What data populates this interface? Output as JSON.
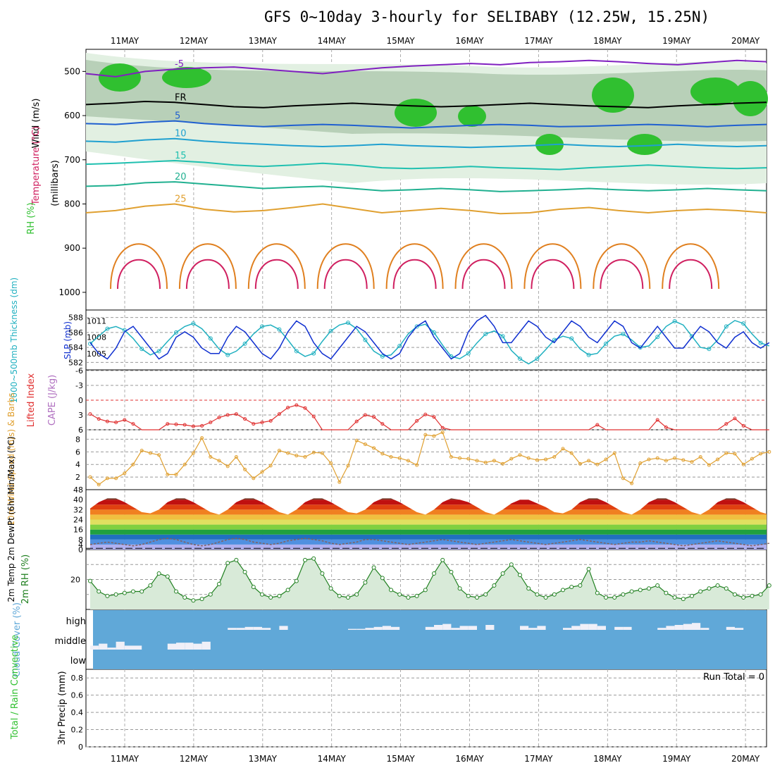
{
  "title": "GFS 0~10day 3-hourly for SELIBABY (12.25W, 15.25N)",
  "dates": [
    "11MAY",
    "12MAY",
    "13MAY",
    "14MAY",
    "15MAY",
    "16MAY",
    "17MAY",
    "18MAY",
    "19MAY",
    "20MAY"
  ],
  "colors": {
    "grid": "#999999",
    "temp_warm": "#d02060",
    "temp_mid": "#e08020",
    "temp_cool": "#20a0c0",
    "cold": "#8020c0",
    "freeze": "#000000",
    "rh_green": "#30c030",
    "slp": "#1030d0",
    "thickness": "#20b0c0",
    "lifted": "#e03030",
    "wind10": "#e0a030",
    "cloud": "#60a8d8",
    "rh2m": "#208020"
  },
  "chart_data": [
    {
      "type": "heatmap",
      "panel": "upper-air",
      "ylabels": {
        "wind": "Wind (m/s)",
        "temperature": "Temperature (°C)",
        "rh": "RH (%)",
        "units": "(millibars)"
      },
      "yticks": [
        500,
        600,
        700,
        800,
        900,
        1000
      ],
      "ylim": [
        450,
        1040
      ],
      "isotherms": [
        {
          "label": "-5",
          "p": [
            505,
            512,
            500,
            495,
            492,
            490,
            495,
            500,
            505,
            498,
            492,
            488,
            485,
            482,
            485,
            480,
            478,
            475,
            478,
            482,
            485,
            480,
            475,
            478
          ]
        },
        {
          "label": "FR",
          "p": [
            575,
            572,
            568,
            570,
            575,
            580,
            582,
            578,
            575,
            572,
            575,
            578,
            580,
            578,
            575,
            572,
            575,
            578,
            580,
            582,
            578,
            575,
            572,
            570
          ]
        },
        {
          "label": "5",
          "p": [
            618,
            620,
            615,
            612,
            618,
            622,
            625,
            622,
            620,
            622,
            625,
            628,
            625,
            622,
            620,
            622,
            625,
            624,
            622,
            620,
            622,
            625,
            622,
            620
          ]
        },
        {
          "label": "10",
          "p": [
            658,
            660,
            655,
            652,
            658,
            662,
            665,
            668,
            670,
            668,
            665,
            668,
            670,
            672,
            670,
            668,
            665,
            668,
            670,
            668,
            665,
            668,
            670,
            668
          ]
        },
        {
          "label": "15",
          "p": [
            710,
            708,
            705,
            702,
            706,
            712,
            715,
            712,
            708,
            712,
            718,
            720,
            718,
            715,
            718,
            720,
            722,
            718,
            715,
            712,
            715,
            718,
            720,
            718
          ]
        },
        {
          "label": "20",
          "p": [
            760,
            758,
            752,
            750,
            755,
            760,
            765,
            762,
            760,
            765,
            770,
            768,
            765,
            768,
            772,
            770,
            768,
            765,
            768,
            770,
            768,
            765,
            768,
            770
          ]
        },
        {
          "label": "25",
          "p": [
            820,
            815,
            805,
            800,
            812,
            818,
            815,
            808,
            800,
            810,
            820,
            815,
            810,
            815,
            822,
            820,
            812,
            808,
            815,
            820,
            815,
            812,
            815,
            820
          ]
        }
      ],
      "rh_shading": "RH (%)"
    },
    {
      "type": "line",
      "panel": "slp-thickness",
      "ylabel_left": "1000~500mb Thickness (dm)",
      "ylabel_right": "SLP (mb)",
      "yticks_left": [
        582,
        584,
        586,
        588
      ],
      "yticks_right": [
        1005,
        1008,
        1011
      ],
      "series": [
        {
          "name": "SLP (mb)",
          "values": [
            1007,
            1005,
            1004,
            1006,
            1009,
            1010,
            1008,
            1006,
            1004,
            1005,
            1008,
            1009,
            1008,
            1006,
            1005,
            1005,
            1008,
            1010,
            1009,
            1007,
            1005,
            1004,
            1006,
            1009,
            1011,
            1010,
            1007,
            1005,
            1004,
            1006,
            1008,
            1010,
            1009,
            1007,
            1005,
            1004,
            1005,
            1008,
            1010,
            1011,
            1008,
            1006,
            1004,
            1005,
            1009,
            1011,
            1012,
            1010,
            1007,
            1007,
            1009,
            1011,
            1010,
            1008,
            1007,
            1009,
            1011,
            1010,
            1008,
            1007,
            1009,
            1011,
            1010,
            1007,
            1006,
            1008,
            1010,
            1008,
            1006,
            1006,
            1008,
            1010,
            1009,
            1007,
            1006,
            1008,
            1009,
            1007,
            1006,
            1007
          ]
        },
        {
          "name": "1000~500mb Thickness (dm)",
          "values": [
            584.5,
            585.5,
            586.5,
            586.8,
            586.3,
            585.2,
            583.8,
            583.0,
            583.5,
            584.8,
            586.0,
            586.8,
            587.2,
            586.5,
            585.2,
            583.8,
            583.0,
            583.5,
            584.5,
            585.8,
            586.8,
            587.0,
            586.4,
            585.0,
            583.5,
            582.8,
            583.2,
            584.8,
            586.2,
            587.0,
            587.3,
            586.5,
            585.0,
            583.5,
            582.8,
            583.0,
            584.2,
            585.8,
            586.8,
            587.1,
            586.0,
            584.3,
            582.8,
            582.5,
            583.2,
            584.6,
            585.8,
            586.2,
            585.5,
            583.6,
            582.5,
            581.8,
            582.5,
            583.7,
            585.0,
            585.5,
            585.2,
            583.8,
            583.0,
            583.2,
            584.5,
            585.5,
            585.8,
            585.0,
            584.0,
            584.2,
            585.4,
            586.8,
            587.5,
            587.0,
            585.5,
            584.0,
            583.8,
            585.0,
            586.8,
            587.6,
            587.2,
            585.8,
            584.6,
            584.2
          ]
        }
      ]
    },
    {
      "type": "line",
      "panel": "lifted-cape",
      "ylabel_left": "Lifted Index",
      "ylabel_right": "CAPE (J/kg)",
      "yticks": [
        -6,
        -3,
        0,
        3,
        6
      ],
      "series": [
        {
          "name": "Lifted Index",
          "values": [
            2.8,
            3.8,
            4.3,
            4.5,
            4.0,
            4.8,
            6,
            6,
            6,
            4.8,
            4.9,
            5.0,
            5.3,
            5.2,
            4.5,
            3.5,
            3.0,
            2.8,
            3.8,
            4.8,
            4.5,
            4.2,
            2.8,
            1.5,
            1.0,
            1.6,
            3.3,
            6,
            6,
            6,
            6,
            4.3,
            3.0,
            3.4,
            4.8,
            6,
            6,
            6,
            4.2,
            2.9,
            3.4,
            5.6,
            6,
            6,
            6,
            6,
            6,
            6,
            6,
            6,
            6,
            6,
            6,
            6,
            6,
            6,
            6,
            6,
            6,
            5,
            6,
            6,
            6,
            6,
            6,
            6,
            4.0,
            5.5,
            6,
            6,
            6,
            6,
            6,
            6,
            4.8,
            3.7,
            5.2,
            6,
            6,
            6
          ]
        }
      ]
    },
    {
      "type": "line",
      "panel": "wind10m",
      "ylabel": "10m Wind Speed (m/s) & Barbs",
      "yticks": [
        2,
        4,
        6,
        8
      ],
      "series": [
        {
          "name": "10m Wind Speed",
          "values": [
            2.0,
            0.8,
            1.8,
            1.8,
            2.6,
            4.0,
            6.2,
            5.8,
            5.5,
            2.4,
            2.4,
            4.0,
            5.8,
            8.2,
            5.2,
            4.6,
            3.7,
            5.2,
            3.2,
            1.8,
            2.8,
            3.8,
            6.2,
            5.8,
            5.4,
            5.2,
            5.9,
            5.8,
            4.2,
            1.2,
            3.8,
            7.8,
            7.2,
            6.6,
            5.7,
            5.2,
            5.0,
            4.6,
            3.9,
            8.7,
            8.5,
            9.1,
            5.2,
            5.0,
            4.9,
            4.6,
            4.3,
            4.6,
            4.1,
            4.9,
            5.5,
            5.0,
            4.7,
            4.8,
            5.2,
            6.5,
            5.8,
            4.1,
            4.6,
            4.0,
            4.8,
            5.8,
            1.8,
            1.0,
            4.2,
            4.8,
            5.0,
            4.6,
            5.0,
            4.7,
            4.4,
            5.2,
            3.9,
            4.8,
            5.8,
            5.7,
            4.0,
            4.9,
            5.7,
            6.0
          ]
        }
      ]
    },
    {
      "type": "area",
      "panel": "temp2m",
      "ylabel": "2m Temp 2m DewPt (6hr Min/Max) (°C)",
      "yticks": [
        0,
        4,
        8,
        16,
        24,
        32,
        40,
        48
      ],
      "series": [
        {
          "name": "2m Temp",
          "values": [
            33,
            38,
            41,
            41,
            38,
            34,
            30,
            29,
            32,
            38,
            41,
            41,
            38,
            34,
            30,
            28,
            32,
            38,
            41,
            41,
            38,
            34,
            30,
            28,
            32,
            38,
            41,
            41,
            38,
            34,
            30,
            29,
            32,
            38,
            41,
            41,
            38,
            34,
            30,
            28,
            32,
            38,
            41,
            40,
            38,
            34,
            30,
            28,
            32,
            37,
            40,
            40,
            37,
            34,
            30,
            29,
            32,
            38,
            41,
            41,
            38,
            34,
            30,
            28,
            32,
            38,
            41,
            41,
            38,
            34,
            30,
            28,
            32,
            38,
            41,
            41,
            38,
            34,
            30,
            28
          ]
        },
        {
          "name": "2m DewPt",
          "values": [
            4,
            5,
            6,
            5,
            4,
            3,
            4,
            6,
            8,
            9,
            8,
            6,
            4,
            3,
            4,
            6,
            8,
            9,
            8,
            6,
            5,
            4,
            5,
            7,
            8,
            9,
            8,
            7,
            5,
            4,
            5,
            6,
            8,
            8,
            7,
            6,
            5,
            4,
            5,
            6,
            7,
            8,
            7,
            6,
            5,
            4,
            5,
            6,
            7,
            8,
            7,
            6,
            5,
            4,
            5,
            6,
            7,
            8,
            7,
            6,
            5,
            4,
            5,
            6,
            6,
            7,
            6,
            5,
            4,
            3,
            4,
            5,
            6,
            7,
            6,
            5,
            4,
            3,
            4,
            5
          ]
        }
      ]
    },
    {
      "type": "area",
      "panel": "rh2m",
      "ylabel": "2m RH (%)",
      "yticks": [
        20
      ],
      "series": [
        {
          "name": "2m RH",
          "values": [
            19,
            12,
            9,
            10,
            11,
            12,
            12,
            16,
            24,
            22,
            12,
            8,
            6,
            7,
            10,
            17,
            31,
            33,
            25,
            15,
            10,
            8,
            9,
            13,
            19,
            33,
            34,
            24,
            14,
            9,
            8,
            10,
            18,
            28,
            21,
            13,
            10,
            8,
            9,
            13,
            24,
            33,
            25,
            14,
            9,
            8,
            10,
            16,
            24,
            30,
            23,
            14,
            10,
            8,
            10,
            13,
            15,
            16,
            27,
            11,
            8,
            8,
            10,
            12,
            13,
            14,
            16,
            11,
            8,
            7,
            9,
            12,
            14,
            16,
            14,
            10,
            8,
            9,
            10,
            16
          ]
        }
      ]
    },
    {
      "type": "bar",
      "panel": "cloud",
      "ylabel": "Cloud Cover (%)",
      "levels": [
        "high",
        "middle",
        "low"
      ],
      "series": [
        {
          "name": "high",
          "values": [
            0,
            0,
            0,
            0,
            0,
            0,
            0,
            0,
            0,
            0,
            0,
            0,
            0,
            0,
            0,
            0,
            10,
            10,
            15,
            15,
            10,
            0,
            20,
            0,
            0,
            0,
            0,
            0,
            0,
            0,
            5,
            5,
            10,
            15,
            20,
            15,
            0,
            0,
            0,
            15,
            25,
            30,
            10,
            20,
            20,
            0,
            25,
            0,
            0,
            0,
            20,
            10,
            20,
            0,
            0,
            10,
            20,
            30,
            30,
            20,
            0,
            15,
            15,
            0,
            0,
            0,
            10,
            20,
            25,
            30,
            35,
            10,
            0,
            0,
            15,
            10,
            0,
            0,
            0,
            0
          ]
        },
        {
          "name": "middle",
          "values": [
            20,
            30,
            10,
            40,
            20,
            20,
            0,
            0,
            0,
            30,
            35,
            35,
            30,
            40,
            0,
            0,
            0,
            0,
            0,
            0,
            0,
            0,
            0,
            0,
            0,
            0,
            0,
            0,
            0,
            0,
            0,
            0,
            0,
            0,
            0,
            0,
            0,
            0,
            0,
            0,
            0,
            0,
            0,
            0,
            0,
            0,
            0,
            0,
            0,
            0,
            0,
            0,
            0,
            0,
            0,
            0,
            0,
            0,
            0,
            0,
            0,
            0,
            0,
            0,
            0,
            0,
            0,
            0,
            0,
            0,
            0,
            0,
            0,
            0,
            0,
            0,
            0,
            0,
            0,
            0
          ]
        }
      ]
    },
    {
      "type": "bar",
      "panel": "precip",
      "ylabel_left": "Total / Rain Convective",
      "ylabel": "3hr Precip (mm)",
      "yticks": [
        0,
        0.2,
        0.4,
        0.6,
        0.8
      ],
      "ylim": [
        0,
        0.9
      ],
      "annotation": "Run Total = 0",
      "values": [
        0,
        0,
        0,
        0,
        0,
        0,
        0,
        0,
        0,
        0,
        0,
        0,
        0,
        0,
        0,
        0,
        0,
        0,
        0,
        0,
        0,
        0,
        0,
        0,
        0,
        0,
        0,
        0,
        0,
        0,
        0,
        0,
        0,
        0,
        0,
        0,
        0,
        0,
        0,
        0,
        0,
        0,
        0,
        0,
        0,
        0,
        0,
        0,
        0,
        0,
        0,
        0,
        0,
        0,
        0,
        0,
        0,
        0,
        0,
        0,
        0,
        0,
        0,
        0,
        0,
        0,
        0,
        0,
        0,
        0,
        0,
        0,
        0,
        0,
        0,
        0,
        0,
        0,
        0,
        0
      ]
    }
  ]
}
